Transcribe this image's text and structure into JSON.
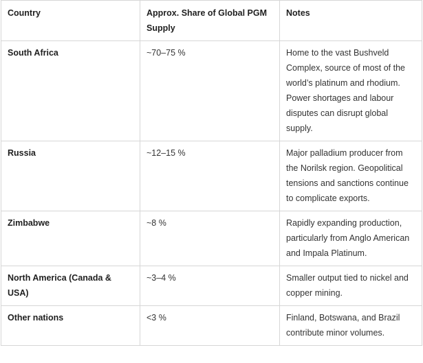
{
  "table": {
    "headers": [
      "Country",
      "Approx. Share of Global PGM Supply",
      "Notes"
    ],
    "rows": [
      {
        "country": "South Africa",
        "share": "~70–75 %",
        "notes": "Home to the vast Bushveld Complex, source of most of the world’s platinum and rhodium. Power shortages and labour disputes can disrupt global supply."
      },
      {
        "country": "Russia",
        "share": "~12–15 %",
        "notes": "Major palladium producer from the Norilsk region. Geopolitical tensions and sanctions continue to complicate exports."
      },
      {
        "country": "Zimbabwe",
        "share": "~8 %",
        "notes": "Rapidly expanding production, particularly from Anglo American and Impala Platinum."
      },
      {
        "country": "North America (Canada & USA)",
        "share": "~3–4 %",
        "notes": "Smaller output tied to nickel and copper mining."
      },
      {
        "country": "Other nations",
        "share": "<3 %",
        "notes": "Finland, Botswana, and Brazil contribute minor volumes."
      }
    ]
  }
}
